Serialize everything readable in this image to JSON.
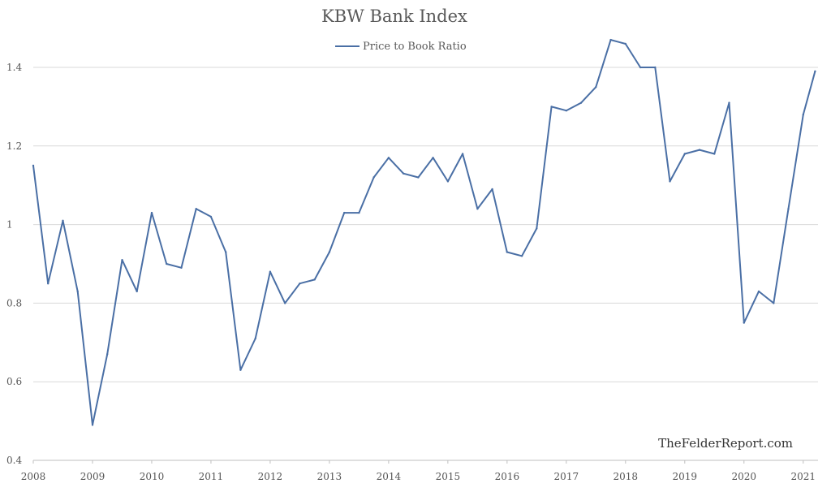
{
  "chart_data": {
    "type": "line",
    "title": "KBW Bank Index",
    "watermark": "TheFelderReport.com",
    "legend_position": "top-center",
    "grid": true,
    "xlabel": "",
    "ylabel": "",
    "xlim": [
      2008.0,
      2021.25
    ],
    "ylim": [
      0.4,
      1.5
    ],
    "y_ticks": [
      {
        "value": 0.4,
        "label": "0.4"
      },
      {
        "value": 0.6,
        "label": "0.6"
      },
      {
        "value": 0.8,
        "label": "0.8"
      },
      {
        "value": 1.0,
        "label": "1"
      },
      {
        "value": 1.2,
        "label": "1.2"
      },
      {
        "value": 1.4,
        "label": "1.4"
      }
    ],
    "x_ticks": [
      {
        "value": 2008,
        "label": "2008"
      },
      {
        "value": 2009,
        "label": "2009"
      },
      {
        "value": 2010,
        "label": "2010"
      },
      {
        "value": 2011,
        "label": "2011"
      },
      {
        "value": 2012,
        "label": "2012"
      },
      {
        "value": 2013,
        "label": "2013"
      },
      {
        "value": 2014,
        "label": "2014"
      },
      {
        "value": 2015,
        "label": "2015"
      },
      {
        "value": 2016,
        "label": "2016"
      },
      {
        "value": 2017,
        "label": "2017"
      },
      {
        "value": 2018,
        "label": "2018"
      },
      {
        "value": 2019,
        "label": "2019"
      },
      {
        "value": 2020,
        "label": "2020"
      },
      {
        "value": 2021,
        "label": "2021"
      }
    ],
    "series": [
      {
        "name": "Price to Book Ratio",
        "color": "#4a6fa5",
        "x": [
          2008.0,
          2008.25,
          2008.5,
          2008.75,
          2009.0,
          2009.25,
          2009.5,
          2009.75,
          2010.0,
          2010.25,
          2010.5,
          2010.75,
          2011.0,
          2011.25,
          2011.5,
          2011.75,
          2012.0,
          2012.25,
          2012.5,
          2012.75,
          2013.0,
          2013.25,
          2013.5,
          2013.75,
          2014.0,
          2014.25,
          2014.5,
          2014.75,
          2015.0,
          2015.25,
          2015.5,
          2015.75,
          2016.0,
          2016.25,
          2016.5,
          2016.75,
          2017.0,
          2017.25,
          2017.5,
          2017.75,
          2018.0,
          2018.25,
          2018.5,
          2018.75,
          2019.0,
          2019.25,
          2019.5,
          2019.75,
          2020.0,
          2020.25,
          2020.5,
          2020.75,
          2021.0,
          2021.2
        ],
        "y": [
          1.15,
          0.85,
          1.01,
          0.83,
          0.49,
          0.67,
          0.91,
          0.83,
          1.03,
          0.9,
          0.89,
          1.04,
          1.02,
          0.93,
          0.63,
          0.71,
          0.88,
          0.8,
          0.85,
          0.86,
          0.93,
          1.03,
          1.03,
          1.12,
          1.17,
          1.13,
          1.12,
          1.17,
          1.11,
          1.18,
          1.04,
          1.09,
          0.93,
          0.92,
          0.99,
          1.3,
          1.29,
          1.31,
          1.35,
          1.47,
          1.46,
          1.4,
          1.4,
          1.11,
          1.18,
          1.19,
          1.18,
          1.31,
          0.75,
          0.83,
          0.8,
          1.04,
          1.28,
          1.39
        ]
      }
    ]
  }
}
